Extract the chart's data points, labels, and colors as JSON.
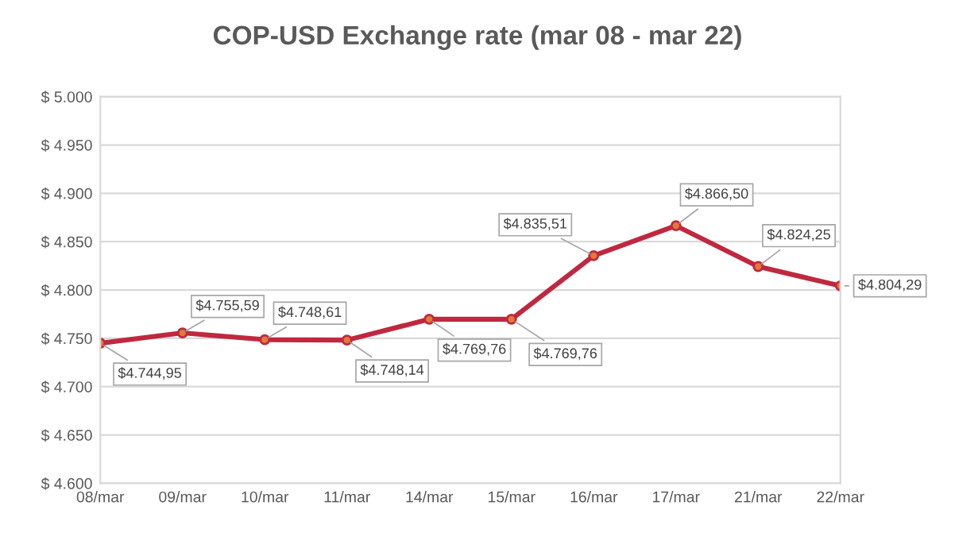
{
  "chart_data": {
    "type": "line",
    "title": "COP-USD Exchange rate (mar 08 - mar 22)",
    "categories": [
      "08/mar",
      "09/mar",
      "10/mar",
      "11/mar",
      "14/mar",
      "15/mar",
      "16/mar",
      "17/mar",
      "21/mar",
      "22/mar"
    ],
    "series": [
      {
        "color": "#c0283f",
        "values": [
          4744.95,
          4755.59,
          4748.61,
          4748.14,
          4769.76,
          4769.76,
          4835.51,
          4866.5,
          4824.25,
          4804.29
        ],
        "value_labels": [
          "$4.744,95",
          "$4.755,59",
          "$4.748,61",
          "$4.748,14",
          "$4.769,76",
          "$4.769,76",
          "$4.835,51",
          "$4.866,50",
          "$4.824,25",
          "$4.804,29"
        ]
      }
    ],
    "ylim": [
      4600,
      5000
    ],
    "yticks": [
      {
        "value": 4600,
        "label": "$ 4.600"
      },
      {
        "value": 4650,
        "label": "$ 4.650"
      },
      {
        "value": 4700,
        "label": "$ 4.700"
      },
      {
        "value": 4750,
        "label": "$ 4.750"
      },
      {
        "value": 4800,
        "label": "$ 4.800"
      },
      {
        "value": 4850,
        "label": "$ 4.850"
      },
      {
        "value": 4900,
        "label": "$ 4.900"
      },
      {
        "value": 4950,
        "label": "$ 4.950"
      },
      {
        "value": 5000,
        "label": "$ 5.000"
      }
    ],
    "grid": "y",
    "marker": "circle",
    "line_style": "solid",
    "legend": false
  }
}
